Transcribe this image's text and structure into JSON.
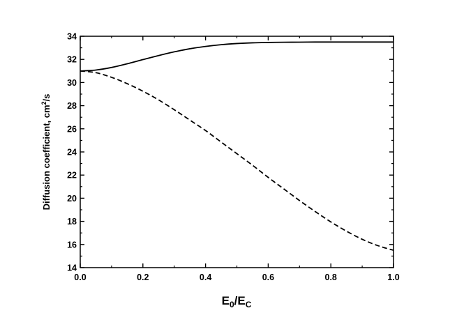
{
  "chart_data": {
    "type": "line",
    "xlabel": {
      "main": "E",
      "sub1": "0",
      "mid": "/E",
      "sub2": "C"
    },
    "ylabel": {
      "pre": "Diffusion coefficient, cm",
      "sup": "2",
      "post": "/s"
    },
    "xlim": [
      0.0,
      1.0
    ],
    "ylim": [
      14,
      34
    ],
    "xticks": [
      "0.0",
      "0.2",
      "0.4",
      "0.6",
      "0.8",
      "1.0"
    ],
    "yticks": [
      "14",
      "16",
      "18",
      "20",
      "22",
      "24",
      "26",
      "28",
      "30",
      "32",
      "34"
    ],
    "grid": false,
    "series": [
      {
        "style": "solid",
        "x": [
          0.0,
          0.05,
          0.1,
          0.15,
          0.2,
          0.25,
          0.3,
          0.35,
          0.4,
          0.45,
          0.5,
          0.55,
          0.6,
          0.65,
          0.7,
          0.75,
          0.8,
          0.85,
          0.9,
          0.95,
          1.0
        ],
        "y": [
          31.0,
          31.08,
          31.3,
          31.62,
          31.98,
          32.33,
          32.65,
          32.92,
          33.12,
          33.27,
          33.37,
          33.43,
          33.46,
          33.48,
          33.49,
          33.5,
          33.5,
          33.5,
          33.5,
          33.5,
          33.5
        ]
      },
      {
        "style": "dashed",
        "x": [
          0.0,
          0.05,
          0.1,
          0.15,
          0.2,
          0.25,
          0.3,
          0.35,
          0.4,
          0.45,
          0.5,
          0.55,
          0.6,
          0.65,
          0.7,
          0.75,
          0.8,
          0.85,
          0.9,
          0.95,
          1.0
        ],
        "y": [
          31.0,
          30.85,
          30.45,
          29.9,
          29.25,
          28.5,
          27.65,
          26.75,
          25.85,
          24.85,
          23.85,
          22.85,
          21.8,
          20.8,
          19.8,
          18.85,
          17.95,
          17.15,
          16.45,
          15.9,
          15.5
        ]
      }
    ]
  }
}
